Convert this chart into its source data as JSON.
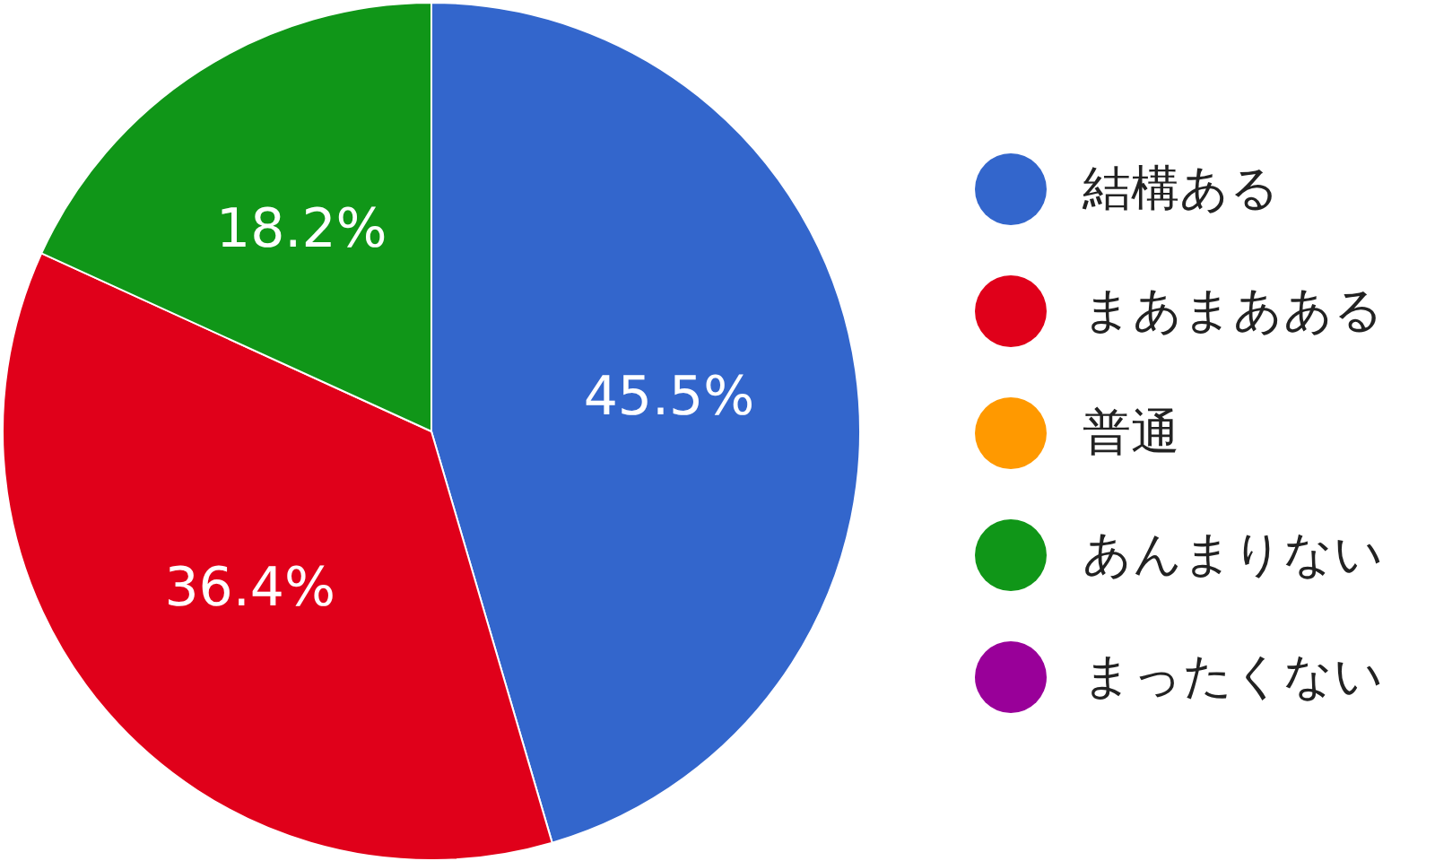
{
  "chart_data": {
    "type": "pie",
    "categories": [
      "結構ある",
      "まあまあある",
      "普通",
      "あんまりない",
      "まったくない"
    ],
    "values": [
      45.5,
      36.4,
      0,
      18.2,
      0
    ],
    "colors": [
      "#3366cc",
      "#e0001a",
      "#ff9900",
      "#109618",
      "#990099"
    ],
    "value_labels": [
      "45.5%",
      "36.4%",
      null,
      "18.2%",
      null
    ],
    "legend": "right"
  }
}
